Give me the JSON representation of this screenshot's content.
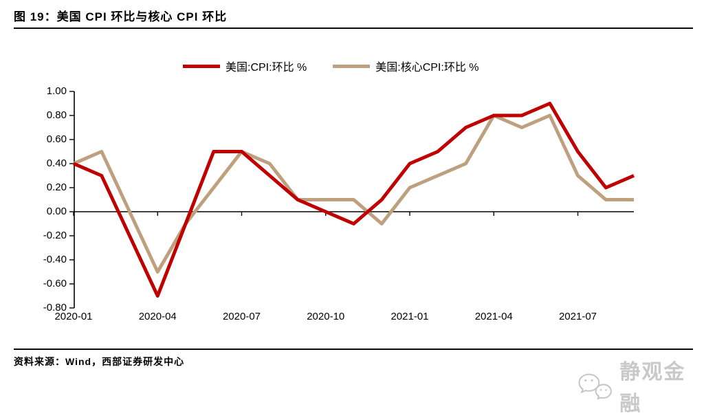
{
  "title": "图 19：美国 CPI 环比与核心 CPI 环比",
  "source": "资料来源：Wind，西部证券研发中心",
  "watermark": {
    "icon": "wechat-icon",
    "text": "静观金融",
    "color": "#c9c9c9"
  },
  "colors": {
    "cpi_line": "#c00000",
    "core_cpi_line": "#bea07e",
    "axis": "#000000"
  },
  "chart_data": {
    "type": "line",
    "title": "图 19：美国 CPI 环比与核心 CPI 环比",
    "xlabel": "",
    "ylabel": "",
    "grid": false,
    "legend_position": "top",
    "ylim": [
      -0.8,
      1.0
    ],
    "y_tick_labels": [
      "1.00",
      "0.80",
      "0.60",
      "0.40",
      "0.20",
      "0.00",
      "-0.20",
      "-0.40",
      "-0.60",
      "-0.80"
    ],
    "x": [
      "2020-01",
      "2020-02",
      "2020-03",
      "2020-04",
      "2020-05",
      "2020-06",
      "2020-07",
      "2020-08",
      "2020-09",
      "2020-10",
      "2020-11",
      "2020-12",
      "2021-01",
      "2021-02",
      "2021-03",
      "2021-04",
      "2021-05",
      "2021-06",
      "2021-07",
      "2021-08",
      "2021-09"
    ],
    "x_tick_labels": [
      "2020-01",
      "2020-04",
      "2020-07",
      "2020-10",
      "2021-01",
      "2021-04",
      "2021-07"
    ],
    "series": [
      {
        "name": "美国:CPI:环比 %",
        "color": "#c00000",
        "values": [
          0.4,
          0.3,
          -0.2,
          -0.7,
          -0.1,
          0.5,
          0.5,
          0.3,
          0.1,
          0.0,
          -0.1,
          0.1,
          0.4,
          0.5,
          0.7,
          0.8,
          0.8,
          0.9,
          0.5,
          0.2,
          0.3
        ]
      },
      {
        "name": "美国:核心CPI:环比 %",
        "color": "#bea07e",
        "values": [
          0.4,
          0.5,
          0.0,
          -0.5,
          -0.1,
          0.2,
          0.5,
          0.4,
          0.1,
          0.1,
          0.1,
          -0.1,
          0.2,
          0.3,
          0.4,
          0.8,
          0.7,
          0.8,
          0.3,
          0.1,
          0.1
        ]
      }
    ]
  }
}
